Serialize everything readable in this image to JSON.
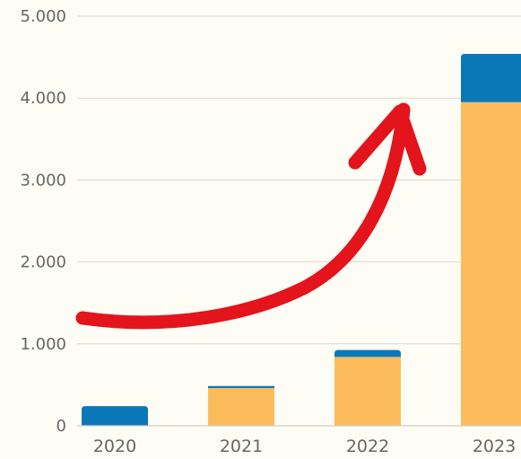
{
  "chart_data": {
    "type": "bar",
    "stacked": true,
    "categories": [
      "2020",
      "2021",
      "2022",
      "2023"
    ],
    "series": [
      {
        "values": [
          0,
          460,
          840,
          3950
        ],
        "color": "#fcbc5c"
      },
      {
        "values": [
          240,
          25,
          85,
          590
        ],
        "color": "#0a78b8"
      }
    ],
    "ylim": [
      0,
      5000
    ],
    "yticks": [
      0,
      1000,
      2000,
      3000,
      4000,
      5000
    ],
    "ytick_labels": [
      "0",
      "1.000",
      "2.000",
      "3.000",
      "4.000",
      "5.000"
    ],
    "grid": true,
    "legend": "none",
    "annotation": {
      "type": "curved-arrow",
      "color": "#e3141b"
    }
  }
}
